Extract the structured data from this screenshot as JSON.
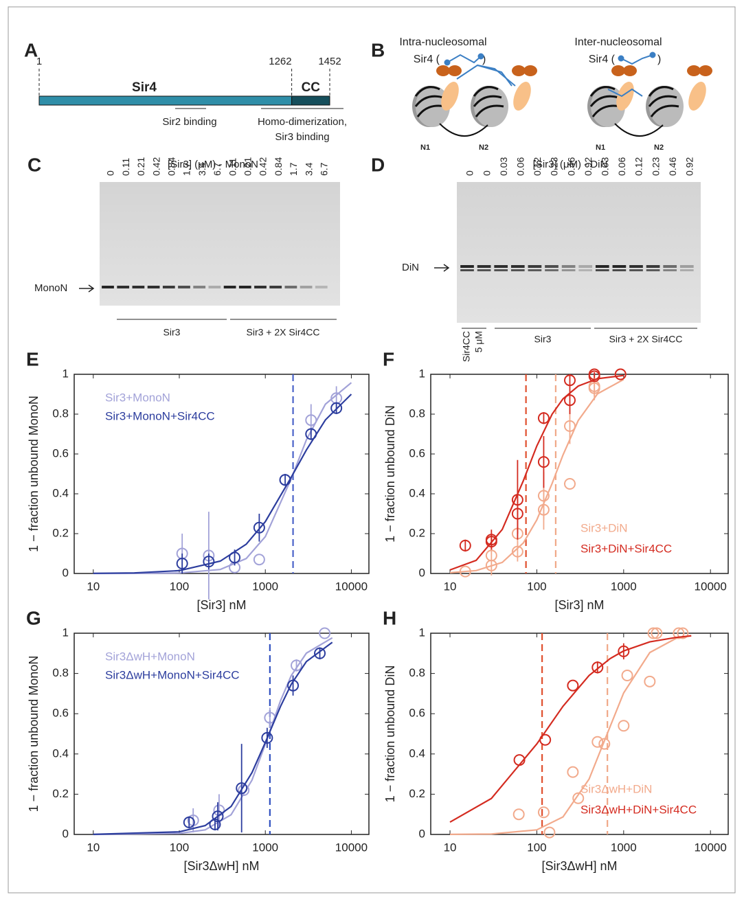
{
  "panel_a": {
    "label": "A",
    "protein": "Sir4",
    "domain": "CC",
    "residues": [
      1,
      1262,
      1452
    ],
    "regions": [
      "Sir2 binding",
      "Homo-dimerization,",
      "Sir3 binding"
    ]
  },
  "panel_b": {
    "label": "B",
    "models": [
      {
        "title": "Intra-nucleosomal",
        "sir4": "Sir4 (",
        "close": ")"
      },
      {
        "title": "Inter-nucleosomal",
        "sir4": "Sir4 (",
        "close": ")"
      }
    ],
    "nucleosomes": [
      "N1",
      "N2"
    ]
  },
  "panel_c": {
    "label": "C",
    "title": "[Sir3] (μM) - MonoN",
    "lanes": [
      "0",
      "0.11",
      "0.21",
      "0.42",
      "0.84",
      "1.7",
      "3.4",
      "6.7",
      "0.11",
      "0.21",
      "0.42",
      "0.84",
      "1.7",
      "3.4",
      "6.7"
    ],
    "band": "MonoN",
    "groups": [
      "Sir3",
      "Sir3 + 2X Sir4CC"
    ]
  },
  "panel_d": {
    "label": "D",
    "title": "[Sir3] (μM) - DiN",
    "lanes": [
      "0",
      "0",
      "0.03",
      "0.06",
      "0.12",
      "0.23",
      "0.46",
      "0.92",
      "0.03",
      "0.06",
      "0.12",
      "0.23",
      "0.46",
      "0.92"
    ],
    "band": "DiN",
    "groups": [
      "Sir4CC",
      "5 μM",
      "Sir3",
      "Sir3 + 2X Sir4CC"
    ]
  },
  "chart_data": [
    {
      "type": "scatter",
      "panel": "E",
      "xlabel": "[Sir3] nM",
      "ylabel": "1 − fraction unbound MonoN",
      "log_x": true,
      "xlim": [
        6,
        16000
      ],
      "ylim": [
        0,
        1
      ],
      "xticks": [
        10,
        100,
        1000,
        10000
      ],
      "yticks": [
        0,
        0.2,
        0.4,
        0.6,
        0.8,
        1
      ],
      "legend": "upper left",
      "series": [
        {
          "name": "Sir3+MonoN",
          "color": "#a2a2d8",
          "x": [
            108,
            220,
            440,
            850,
            1700,
            3400,
            6700
          ],
          "values": [
            0.1,
            0.09,
            0.03,
            0.07,
            0.47,
            0.77,
            0.88
          ],
          "errors": [
            0.1,
            0.22,
            null,
            null,
            null,
            0.08,
            0.06
          ],
          "fit": {
            "x": [
              10,
              30,
              100,
              300,
              600,
              1000,
              2000,
              3000,
              5000,
              10000
            ],
            "y": [
              2e-05,
              0.0002,
              0.0023,
              0.02,
              0.075,
              0.185,
              0.476,
              0.671,
              0.85,
              0.958
            ]
          }
        },
        {
          "name": "Sir3+MonoN+Sir4CC",
          "color": "#2c3d9e",
          "x": [
            108,
            220,
            440,
            850,
            1700,
            3400,
            6700
          ],
          "values": [
            0.05,
            0.06,
            0.08,
            0.23,
            0.47,
            0.7,
            0.83
          ],
          "errors": [
            0.05,
            0.04,
            0.04,
            0.07,
            0.03,
            0.03,
            0.03
          ],
          "fit": {
            "x": [
              10,
              30,
              100,
              300,
              600,
              1000,
              2000,
              3000,
              5000,
              10000
            ],
            "y": [
              0.0006,
              0.0026,
              0.014,
              0.062,
              0.147,
              0.26,
              0.483,
              0.62,
              0.771,
              0.9
            ]
          }
        }
      ],
      "kd_lines": [
        {
          "x": 2100,
          "color": "#4a62c8"
        }
      ]
    },
    {
      "type": "scatter",
      "panel": "F",
      "xlabel": "[Sir3] nM",
      "ylabel": "1 − fraction unbound DiN",
      "log_x": true,
      "xlim": [
        6,
        16000
      ],
      "ylim": [
        0,
        1
      ],
      "xticks": [
        10,
        100,
        1000,
        10000
      ],
      "yticks": [
        0,
        0.2,
        0.4,
        0.6,
        0.8,
        1
      ],
      "legend": "lower right",
      "series": [
        {
          "name": "Sir3+DiN",
          "color": "#f2aa8c",
          "x": [
            15,
            30,
            30,
            60,
            60,
            120,
            120,
            240,
            240,
            460,
            460,
            920
          ],
          "values": [
            0.01,
            0.04,
            0.09,
            0.11,
            0.2,
            0.32,
            0.39,
            0.45,
            0.74,
            0.93,
            0.94,
            1.0
          ],
          "errors": [
            null,
            null,
            0.1,
            0.05,
            0.07,
            0.1,
            0.12,
            null,
            0.09,
            0.06,
            0.05,
            null
          ],
          "fit": {
            "x": [
              10,
              20,
              40,
              70,
              100,
              150,
              200,
              300,
              500,
              1000
            ],
            "y": [
              0.0037,
              0.0145,
              0.0555,
              0.153,
              0.269,
              0.452,
              0.595,
              0.768,
              0.902,
              0.974
            ]
          }
        },
        {
          "name": "Sir3+DiN+Sir4CC",
          "color": "#d42b20",
          "x": [
            15,
            30,
            30,
            60,
            60,
            120,
            120,
            240,
            240,
            460,
            460,
            920
          ],
          "values": [
            0.14,
            0.16,
            0.17,
            0.3,
            0.37,
            0.78,
            0.56,
            0.87,
            0.97,
            0.99,
            1.0,
            1.0
          ],
          "errors": [
            0.03,
            0.04,
            0.05,
            0.1,
            0.2,
            0.03,
            0.13,
            0.07,
            0.03,
            0.01,
            0.01,
            null
          ],
          "fit": {
            "x": [
              10,
              20,
              40,
              70,
              100,
              150,
              200,
              300,
              500,
              1000
            ],
            "y": [
              0.0175,
              0.066,
              0.221,
              0.466,
              0.64,
              0.8,
              0.877,
              0.941,
              0.978,
              0.994
            ]
          }
        }
      ],
      "kd_lines": [
        {
          "x": 75,
          "color": "#e0502e"
        },
        {
          "x": 165,
          "color": "#f0a888"
        }
      ]
    },
    {
      "type": "scatter",
      "panel": "G",
      "xlabel": "[Sir3ΔwH] nM",
      "ylabel": "1 − fraction unbound MonoN",
      "log_x": true,
      "xlim": [
        6,
        16000
      ],
      "ylim": [
        0,
        1
      ],
      "xticks": [
        10,
        100,
        1000,
        10000
      ],
      "yticks": [
        0,
        0.2,
        0.4,
        0.6,
        0.8,
        1
      ],
      "legend": "upper left",
      "series": [
        {
          "name": "Sir3ΔwH+MonoN",
          "color": "#a2a2d8",
          "x": [
            145,
            290,
            560,
            1130,
            2300,
            4900
          ],
          "values": [
            0.07,
            0.12,
            0.22,
            0.58,
            0.84,
            1.0
          ],
          "errors": [
            0.06,
            0.08,
            null,
            0.05,
            0.03,
            null
          ],
          "fit": {
            "x": [
              10,
              100,
              200,
              400,
              700,
              1000,
              1500,
              2000,
              3000,
              6000
            ],
            "y": [
              3e-05,
              0.0051,
              0.023,
              0.098,
              0.27,
              0.448,
              0.664,
              0.789,
              0.901,
              0.977
            ]
          }
        },
        {
          "name": "Sir3ΔwH+MonoN+Sir4CC",
          "color": "#2c3d9e",
          "x": [
            130,
            260,
            280,
            530,
            1050,
            2100,
            4300
          ],
          "values": [
            0.06,
            0.05,
            0.09,
            0.23,
            0.48,
            0.74,
            0.9
          ],
          "errors": [
            0.03,
            0.03,
            0.07,
            0.22,
            0.05,
            0.05,
            0.03
          ],
          "fit": {
            "x": [
              10,
              100,
              200,
              400,
              700,
              1000,
              1500,
              2000,
              3000,
              6000
            ],
            "y": [
              0.0002,
              0.013,
              0.044,
              0.139,
              0.307,
              0.457,
              0.636,
              0.746,
              0.859,
              0.955
            ]
          }
        }
      ],
      "kd_lines": [
        {
          "x": 1130,
          "color": "#3050c0"
        }
      ]
    },
    {
      "type": "scatter",
      "panel": "H",
      "xlabel": "[Sir3ΔwH] nM",
      "ylabel": "1 − fraction unbound DiN",
      "log_x": true,
      "xlim": [
        6,
        16000
      ],
      "ylim": [
        0,
        1
      ],
      "xticks": [
        10,
        100,
        1000,
        10000
      ],
      "yticks": [
        0,
        0.2,
        0.4,
        0.6,
        0.8,
        1
      ],
      "legend": "lower right",
      "series": [
        {
          "name": "Sir3ΔwH+DiN",
          "color": "#f2aa8c",
          "x": [
            62,
            120,
            140,
            260,
            300,
            500,
            600,
            1000,
            1100,
            2000,
            2200,
            2400,
            4300,
            4800
          ],
          "values": [
            0.1,
            0.11,
            0.01,
            0.31,
            0.18,
            0.46,
            0.45,
            0.54,
            0.79,
            0.76,
            1.0,
            1.0,
            1.0,
            1.0
          ],
          "fit": {
            "x": [
              10,
              30,
              100,
              200,
              400,
              700,
              1000,
              2000,
              4000,
              6000
            ],
            "y": [
              0.0002,
              0.0021,
              0.023,
              0.087,
              0.275,
              0.537,
              0.703,
              0.904,
              0.974,
              0.988
            ]
          }
        },
        {
          "name": "Sir3ΔwH+DiN+Sir4CC",
          "color": "#d42b20",
          "x": [
            63,
            125,
            260,
            500,
            1000
          ],
          "values": [
            0.37,
            0.47,
            0.74,
            0.83,
            0.91
          ],
          "errors": [
            null,
            null,
            null,
            0.03,
            0.04
          ],
          "fit": {
            "x": [
              10,
              30,
              100,
              200,
              400,
              700,
              1000,
              2000,
              4000,
              6000
            ],
            "y": [
              0.061,
              0.179,
              0.45,
              0.637,
              0.79,
              0.874,
              0.912,
              0.957,
              0.979,
              0.987
            ]
          }
        }
      ],
      "kd_lines": [
        {
          "x": 115,
          "color": "#e0502e"
        },
        {
          "x": 650,
          "color": "#f0a888"
        }
      ]
    }
  ]
}
